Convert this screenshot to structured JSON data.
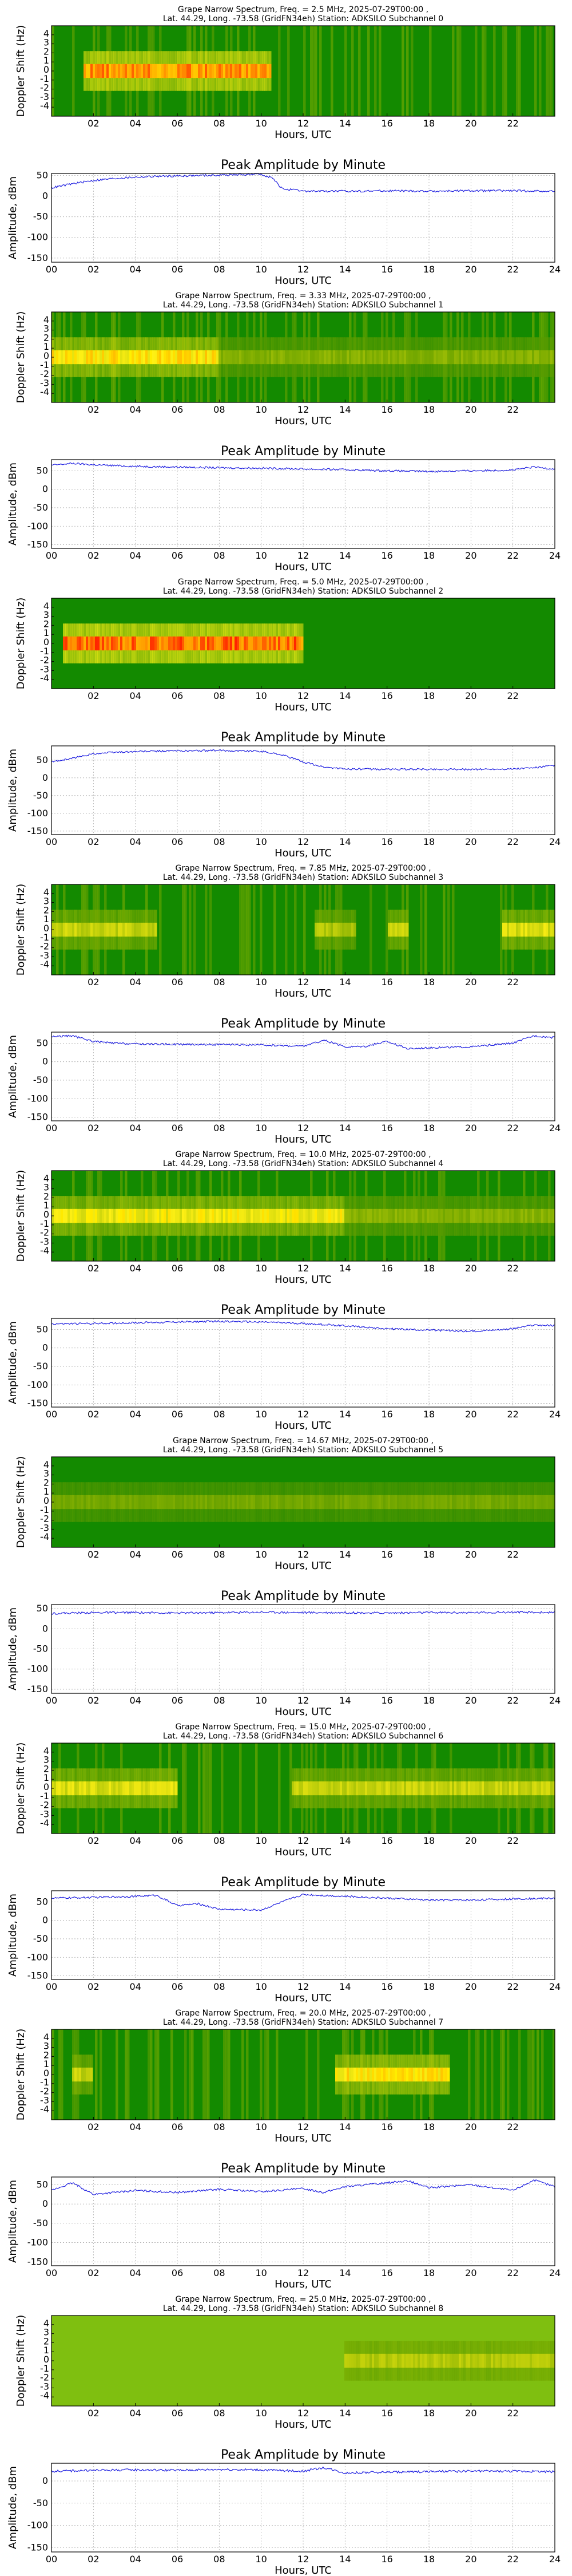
{
  "chart_data": [
    {
      "type": "heatmap",
      "title_line1": "Grape Narrow Spectrum, Freq. = 2.5 MHz, 2025-07-29T00:00 ,",
      "title_line2": "Lat. 44.29, Long. -73.58 (GridFN34eh) Station: ADKSILO Subchannel 0",
      "xlabel": "Hours, UTC",
      "ylabel": "Doppler Shift (Hz)",
      "xticks": [
        "02",
        "04",
        "06",
        "08",
        "10",
        "12",
        "14",
        "16",
        "18",
        "20",
        "22"
      ],
      "yticks": [
        "4",
        "3",
        "2",
        "1",
        "0",
        "-1",
        "-2",
        "-3",
        "-4"
      ],
      "xlim": [
        0,
        24
      ],
      "ylim": [
        -5,
        5
      ],
      "bands": [
        {
          "t0": 1.5,
          "t1": 10.5,
          "f": 0,
          "intensity": 0.9
        }
      ],
      "vertical_streaks": true
    },
    {
      "type": "line",
      "title": "Peak Amplitude by Minute",
      "xlabel": "Hours, UTC",
      "ylabel": "Amplitude, dBm",
      "xlim": [
        0,
        24
      ],
      "ylim": [
        -160,
        55
      ],
      "xticks": [
        "00",
        "02",
        "04",
        "06",
        "08",
        "10",
        "12",
        "14",
        "16",
        "18",
        "20",
        "22",
        "24"
      ],
      "yticks": [
        50,
        0,
        -50,
        -100,
        -150
      ],
      "grid": true,
      "series": [
        {
          "x": [
            0,
            1,
            2,
            3,
            4,
            5,
            6,
            7,
            8,
            9,
            10,
            10.5,
            11,
            12,
            14,
            16,
            18,
            20,
            22,
            24
          ],
          "y": [
            20,
            30,
            38,
            43,
            46,
            48,
            49,
            50,
            51,
            52,
            53,
            45,
            18,
            12,
            12,
            13,
            12,
            13,
            13,
            12
          ]
        }
      ]
    },
    {
      "type": "heatmap",
      "title_line1": "Grape Narrow Spectrum, Freq. = 3.33 MHz, 2025-07-29T00:00 ,",
      "title_line2": "Lat. 44.29, Long. -73.58 (GridFN34eh) Station: ADKSILO Subchannel 1",
      "xlabel": "Hours, UTC",
      "ylabel": "Doppler Shift (Hz)",
      "xticks": [
        "02",
        "04",
        "06",
        "08",
        "10",
        "12",
        "14",
        "16",
        "18",
        "20",
        "22"
      ],
      "yticks": [
        "4",
        "3",
        "2",
        "1",
        "0",
        "-1",
        "-2",
        "-3",
        "-4"
      ],
      "xlim": [
        0,
        24
      ],
      "ylim": [
        -5,
        5
      ],
      "bands": [
        {
          "t0": 0,
          "t1": 8,
          "f": 0,
          "intensity": 0.75
        },
        {
          "t0": 8,
          "t1": 24,
          "f": 0,
          "intensity": 0.45
        }
      ],
      "vertical_streaks": true
    },
    {
      "type": "line",
      "title": "Peak Amplitude by Minute",
      "xlabel": "Hours, UTC",
      "ylabel": "Amplitude, dBm",
      "xlim": [
        0,
        24
      ],
      "ylim": [
        -160,
        80
      ],
      "xticks": [
        "00",
        "02",
        "04",
        "06",
        "08",
        "10",
        "12",
        "14",
        "16",
        "18",
        "20",
        "22",
        "24"
      ],
      "yticks": [
        50,
        0,
        -50,
        -100,
        -150
      ],
      "grid": true,
      "series": [
        {
          "x": [
            0,
            1,
            2,
            4,
            6,
            8,
            10,
            12,
            14,
            16,
            18,
            20,
            22,
            23,
            24
          ],
          "y": [
            65,
            70,
            66,
            62,
            60,
            58,
            57,
            55,
            53,
            50,
            48,
            50,
            52,
            60,
            55
          ]
        }
      ]
    },
    {
      "type": "heatmap",
      "title_line1": "Grape Narrow Spectrum, Freq. = 5.0 MHz, 2025-07-29T00:00 ,",
      "title_line2": "Lat. 44.29, Long. -73.58 (GridFN34eh) Station: ADKSILO Subchannel 2",
      "xlabel": "Hours, UTC",
      "ylabel": "Doppler Shift (Hz)",
      "xticks": [
        "02",
        "04",
        "06",
        "08",
        "10",
        "12",
        "14",
        "16",
        "18",
        "20",
        "22"
      ],
      "yticks": [
        "4",
        "3",
        "2",
        "1",
        "0",
        "-1",
        "-2",
        "-3",
        "-4"
      ],
      "xlim": [
        0,
        24
      ],
      "ylim": [
        -5,
        5
      ],
      "bands": [
        {
          "t0": 0.5,
          "t1": 12,
          "f": 0,
          "intensity": 0.95
        }
      ],
      "vertical_streaks": false
    },
    {
      "type": "line",
      "title": "Peak Amplitude by Minute",
      "xlabel": "Hours, UTC",
      "ylabel": "Amplitude, dBm",
      "xlim": [
        0,
        24
      ],
      "ylim": [
        -160,
        90
      ],
      "xticks": [
        "00",
        "02",
        "04",
        "06",
        "08",
        "10",
        "12",
        "14",
        "16",
        "18",
        "20",
        "22",
        "24"
      ],
      "yticks": [
        50,
        0,
        -50,
        -100,
        -150
      ],
      "grid": true,
      "series": [
        {
          "x": [
            0,
            1,
            2,
            3,
            4,
            6,
            8,
            10,
            11,
            12,
            13,
            14,
            16,
            18,
            20,
            22,
            23,
            24
          ],
          "y": [
            45,
            55,
            68,
            72,
            74,
            76,
            77,
            75,
            65,
            45,
            30,
            25,
            24,
            24,
            24,
            25,
            28,
            35
          ]
        }
      ]
    },
    {
      "type": "heatmap",
      "title_line1": "Grape Narrow Spectrum, Freq. = 7.85 MHz, 2025-07-29T00:00 ,",
      "title_line2": "Lat. 44.29, Long. -73.58 (GridFN34eh) Station: ADKSILO Subchannel 3",
      "xlabel": "Hours, UTC",
      "ylabel": "Doppler Shift (Hz)",
      "xticks": [
        "02",
        "04",
        "06",
        "08",
        "10",
        "12",
        "14",
        "16",
        "18",
        "20",
        "22"
      ],
      "yticks": [
        "4",
        "3",
        "2",
        "1",
        "0",
        "-1",
        "-2",
        "-3",
        "-4"
      ],
      "xlim": [
        0,
        24
      ],
      "ylim": [
        -5,
        5
      ],
      "bands": [
        {
          "t0": 0,
          "t1": 5,
          "f": 0,
          "intensity": 0.6
        },
        {
          "t0": 12.5,
          "t1": 14.5,
          "f": 0,
          "intensity": 0.55
        },
        {
          "t0": 16,
          "t1": 17,
          "f": 0,
          "intensity": 0.6
        },
        {
          "t0": 21.5,
          "t1": 24,
          "f": 0,
          "intensity": 0.65
        }
      ],
      "vertical_streaks": true
    },
    {
      "type": "line",
      "title": "Peak Amplitude by Minute",
      "xlabel": "Hours, UTC",
      "ylabel": "Amplitude, dBm",
      "xlim": [
        0,
        24
      ],
      "ylim": [
        -160,
        80
      ],
      "xticks": [
        "00",
        "02",
        "04",
        "06",
        "08",
        "10",
        "12",
        "14",
        "16",
        "18",
        "20",
        "22",
        "24"
      ],
      "yticks": [
        50,
        0,
        -50,
        -100,
        -150
      ],
      "grid": true,
      "series": [
        {
          "x": [
            0,
            1,
            2,
            3,
            4,
            6,
            8,
            10,
            12,
            13,
            14,
            15,
            16,
            17,
            18,
            20,
            22,
            23,
            24
          ],
          "y": [
            68,
            70,
            55,
            50,
            48,
            47,
            46,
            45,
            42,
            58,
            40,
            42,
            55,
            35,
            38,
            40,
            50,
            70,
            65
          ]
        }
      ]
    },
    {
      "type": "heatmap",
      "title_line1": "Grape Narrow Spectrum, Freq. = 10.0 MHz, 2025-07-29T00:00 ,",
      "title_line2": "Lat. 44.29, Long. -73.58 (GridFN34eh) Station: ADKSILO Subchannel 4",
      "xlabel": "Hours, UTC",
      "ylabel": "Doppler Shift (Hz)",
      "xticks": [
        "02",
        "04",
        "06",
        "08",
        "10",
        "12",
        "14",
        "16",
        "18",
        "20",
        "22"
      ],
      "yticks": [
        "4",
        "3",
        "2",
        "1",
        "0",
        "-1",
        "-2",
        "-3",
        "-4"
      ],
      "xlim": [
        0,
        24
      ],
      "ylim": [
        -5,
        5
      ],
      "bands": [
        {
          "t0": 0,
          "t1": 14,
          "f": 0,
          "intensity": 0.7
        },
        {
          "t0": 14,
          "t1": 24,
          "f": 0,
          "intensity": 0.45
        }
      ],
      "vertical_streaks": true
    },
    {
      "type": "line",
      "title": "Peak Amplitude by Minute",
      "xlabel": "Hours, UTC",
      "ylabel": "Amplitude, dBm",
      "xlim": [
        0,
        24
      ],
      "ylim": [
        -160,
        80
      ],
      "xticks": [
        "00",
        "02",
        "04",
        "06",
        "08",
        "10",
        "12",
        "14",
        "16",
        "18",
        "20",
        "22",
        "24"
      ],
      "yticks": [
        50,
        0,
        -50,
        -100,
        -150
      ],
      "grid": true,
      "series": [
        {
          "x": [
            0,
            2,
            4,
            6,
            8,
            10,
            12,
            14,
            16,
            18,
            20,
            22,
            23,
            24
          ],
          "y": [
            65,
            66,
            68,
            70,
            72,
            70,
            66,
            60,
            52,
            48,
            45,
            52,
            62,
            60
          ]
        }
      ]
    },
    {
      "type": "heatmap",
      "title_line1": "Grape Narrow Spectrum, Freq. = 14.67 MHz, 2025-07-29T00:00 ,",
      "title_line2": "Lat. 44.29, Long. -73.58 (GridFN34eh) Station: ADKSILO Subchannel 5",
      "xlabel": "Hours, UTC",
      "ylabel": "Doppler Shift (Hz)",
      "xticks": [
        "02",
        "04",
        "06",
        "08",
        "10",
        "12",
        "14",
        "16",
        "18",
        "20",
        "22"
      ],
      "yticks": [
        "4",
        "3",
        "2",
        "1",
        "0",
        "-1",
        "-2",
        "-3",
        "-4"
      ],
      "xlim": [
        0,
        24
      ],
      "ylim": [
        -5,
        5
      ],
      "bands": [
        {
          "t0": 0,
          "t1": 24,
          "f": 0,
          "intensity": 0.4
        }
      ],
      "vertical_streaks": false
    },
    {
      "type": "line",
      "title": "Peak Amplitude by Minute",
      "xlabel": "Hours, UTC",
      "ylabel": "Amplitude, dBm",
      "xlim": [
        0,
        24
      ],
      "ylim": [
        -160,
        60
      ],
      "xticks": [
        "00",
        "02",
        "04",
        "06",
        "08",
        "10",
        "12",
        "14",
        "16",
        "18",
        "20",
        "22",
        "24"
      ],
      "yticks": [
        50,
        0,
        -50,
        -100,
        -150
      ],
      "grid": true,
      "series": [
        {
          "x": [
            0,
            2,
            4,
            6,
            8,
            10,
            12,
            14,
            16,
            18,
            20,
            22,
            24
          ],
          "y": [
            38,
            40,
            40,
            39,
            40,
            41,
            40,
            40,
            39,
            40,
            40,
            41,
            40
          ]
        }
      ]
    },
    {
      "type": "heatmap",
      "title_line1": "Grape Narrow Spectrum, Freq. = 15.0 MHz, 2025-07-29T00:00 ,",
      "title_line2": "Lat. 44.29, Long. -73.58 (GridFN34eh) Station: ADKSILO Subchannel 6",
      "xlabel": "Hours, UTC",
      "ylabel": "Doppler Shift (Hz)",
      "xticks": [
        "02",
        "04",
        "06",
        "08",
        "10",
        "12",
        "14",
        "16",
        "18",
        "20",
        "22"
      ],
      "yticks": [
        "4",
        "3",
        "2",
        "1",
        "0",
        "-1",
        "-2",
        "-3",
        "-4"
      ],
      "xlim": [
        0,
        24
      ],
      "ylim": [
        -5,
        5
      ],
      "bands": [
        {
          "t0": 0,
          "t1": 6,
          "f": 0,
          "intensity": 0.65
        },
        {
          "t0": 11.5,
          "t1": 24,
          "f": 0,
          "intensity": 0.6
        }
      ],
      "vertical_streaks": true
    },
    {
      "type": "line",
      "title": "Peak Amplitude by Minute",
      "xlabel": "Hours, UTC",
      "ylabel": "Amplitude, dBm",
      "xlim": [
        0,
        24
      ],
      "ylim": [
        -160,
        80
      ],
      "xticks": [
        "00",
        "02",
        "04",
        "06",
        "08",
        "10",
        "12",
        "14",
        "16",
        "18",
        "20",
        "22",
        "24"
      ],
      "yticks": [
        50,
        0,
        -50,
        -100,
        -150
      ],
      "grid": true,
      "series": [
        {
          "x": [
            0,
            2,
            4,
            5,
            6,
            7,
            8,
            10,
            11,
            12,
            14,
            16,
            18,
            20,
            22,
            24
          ],
          "y": [
            60,
            62,
            65,
            68,
            40,
            45,
            30,
            28,
            50,
            70,
            65,
            60,
            55,
            55,
            58,
            60
          ]
        }
      ]
    },
    {
      "type": "heatmap",
      "title_line1": "Grape Narrow Spectrum, Freq. = 20.0 MHz, 2025-07-29T00:00 ,",
      "title_line2": "Lat. 44.29, Long. -73.58 (GridFN34eh) Station: ADKSILO Subchannel 7",
      "xlabel": "Hours, UTC",
      "ylabel": "Doppler Shift (Hz)",
      "xticks": [
        "02",
        "04",
        "06",
        "08",
        "10",
        "12",
        "14",
        "16",
        "18",
        "20",
        "22"
      ],
      "yticks": [
        "4",
        "3",
        "2",
        "1",
        "0",
        "-1",
        "-2",
        "-3",
        "-4"
      ],
      "xlim": [
        0,
        24
      ],
      "ylim": [
        -5,
        5
      ],
      "bands": [
        {
          "t0": 1,
          "t1": 2,
          "f": 0,
          "intensity": 0.6
        },
        {
          "t0": 13.5,
          "t1": 19,
          "f": 0,
          "intensity": 0.75
        }
      ],
      "vertical_streaks": true
    },
    {
      "type": "line",
      "title": "Peak Amplitude by Minute",
      "xlabel": "Hours, UTC",
      "ylabel": "Amplitude, dBm",
      "xlim": [
        0,
        24
      ],
      "ylim": [
        -160,
        70
      ],
      "xticks": [
        "00",
        "02",
        "04",
        "06",
        "08",
        "10",
        "12",
        "14",
        "16",
        "18",
        "20",
        "22",
        "24"
      ],
      "yticks": [
        50,
        0,
        -50,
        -100,
        -150
      ],
      "grid": true,
      "series": [
        {
          "x": [
            0,
            1,
            2,
            3,
            4,
            6,
            8,
            10,
            12,
            13,
            14,
            16,
            17,
            18,
            20,
            22,
            23,
            24
          ],
          "y": [
            35,
            55,
            25,
            30,
            35,
            30,
            38,
            32,
            40,
            30,
            45,
            55,
            60,
            42,
            50,
            35,
            62,
            45
          ]
        }
      ]
    },
    {
      "type": "heatmap",
      "title_line1": "Grape Narrow Spectrum, Freq. = 25.0 MHz, 2025-07-29T00:00 ,",
      "title_line2": "Lat. 44.29, Long. -73.58 (GridFN34eh) Station: ADKSILO Subchannel 8",
      "xlabel": "Hours, UTC",
      "ylabel": "Doppler Shift (Hz)",
      "xticks": [
        "02",
        "04",
        "06",
        "08",
        "10",
        "12",
        "14",
        "16",
        "18",
        "20",
        "22"
      ],
      "yticks": [
        "4",
        "3",
        "2",
        "1",
        "0",
        "-1",
        "-2",
        "-3",
        "-4"
      ],
      "xlim": [
        0,
        24
      ],
      "ylim": [
        -5,
        5
      ],
      "bands": [
        {
          "t0": 14,
          "t1": 24,
          "f": 0,
          "intensity": 0.55
        }
      ],
      "vertical_streaks": false,
      "background": "yellow-green"
    },
    {
      "type": "line",
      "title": "Peak Amplitude by Minute",
      "xlabel": "Hours, UTC",
      "ylabel": "Amplitude, dBm",
      "xlim": [
        0,
        24
      ],
      "ylim": [
        -160,
        40
      ],
      "xticks": [
        "00",
        "02",
        "04",
        "06",
        "08",
        "10",
        "12",
        "14",
        "16",
        "18",
        "20",
        "22",
        "24"
      ],
      "yticks": [
        0,
        -50,
        -100,
        -150
      ],
      "grid": true,
      "series": [
        {
          "x": [
            0,
            2,
            4,
            6,
            8,
            10,
            12,
            13,
            14,
            16,
            18,
            20,
            22,
            24
          ],
          "y": [
            22,
            24,
            25,
            24,
            26,
            25,
            22,
            30,
            18,
            20,
            21,
            22,
            22,
            21
          ]
        }
      ]
    }
  ]
}
